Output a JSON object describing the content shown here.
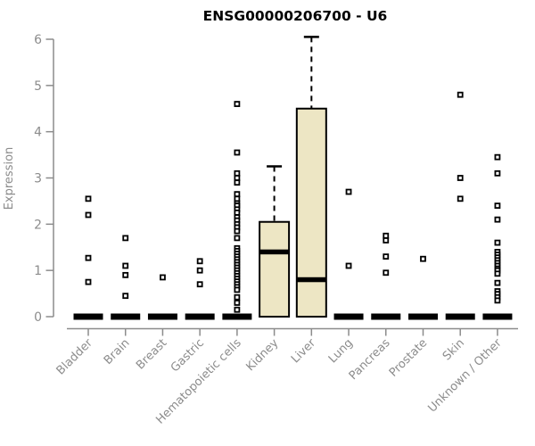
{
  "chart_data": {
    "type": "boxplot",
    "title": "ENSG00000206700 - U6",
    "ylabel": "Expression",
    "xlabel": "",
    "ylim": [
      0,
      6
    ],
    "yticks": [
      0,
      1,
      2,
      3,
      4,
      5,
      6
    ],
    "grid": false,
    "legend": "none",
    "colors": {
      "box_fill": "#EDE6C4",
      "box_stroke": "#000000",
      "median": "#000000",
      "whisker": "#000000",
      "outlier_stroke": "#000000",
      "outlier_fill": "#ffffff",
      "axis": "#8C8C8C",
      "tick_label": "#8C8C8C",
      "title": "#000000",
      "background": "#ffffff"
    },
    "categories": [
      "Bladder",
      "Brain",
      "Breast",
      "Gastric",
      "Hematopoietic cells",
      "Kidney",
      "Liver",
      "Lung",
      "Pancreas",
      "Prostate",
      "Skin",
      "Unknown / Other"
    ],
    "boxes": [
      {
        "category": "Bladder",
        "q1": 0,
        "median": 0,
        "q3": 0,
        "whisker_low": 0,
        "whisker_high": 0,
        "outliers": [
          2.55,
          2.2,
          1.27,
          0.75
        ]
      },
      {
        "category": "Brain",
        "q1": 0,
        "median": 0,
        "q3": 0,
        "whisker_low": 0,
        "whisker_high": 0,
        "outliers": [
          1.7,
          1.1,
          0.9,
          0.45
        ]
      },
      {
        "category": "Breast",
        "q1": 0,
        "median": 0,
        "q3": 0,
        "whisker_low": 0,
        "whisker_high": 0,
        "outliers": [
          0.85
        ]
      },
      {
        "category": "Gastric",
        "q1": 0,
        "median": 0,
        "q3": 0,
        "whisker_low": 0,
        "whisker_high": 0,
        "outliers": [
          1.2,
          1.0,
          0.7
        ]
      },
      {
        "category": "Hematopoietic cells",
        "q1": 0,
        "median": 0,
        "q3": 0,
        "whisker_low": 0,
        "whisker_high": 0,
        "outliers": [
          4.6,
          3.55,
          3.1,
          3.0,
          2.9,
          2.65,
          2.55,
          2.45,
          2.4,
          2.32,
          2.25,
          2.15,
          2.08,
          2.0,
          1.93,
          1.85,
          1.7,
          1.48,
          1.42,
          1.36,
          1.3,
          1.24,
          1.18,
          1.12,
          1.06,
          1.0,
          0.94,
          0.88,
          0.82,
          0.76,
          0.7,
          0.64,
          0.58,
          0.42,
          0.3,
          0.15
        ]
      },
      {
        "category": "Kidney",
        "q1": 0,
        "median": 1.4,
        "q3": 2.05,
        "whisker_low": 0,
        "whisker_high": 3.25,
        "outliers": []
      },
      {
        "category": "Liver",
        "q1": 0,
        "median": 0.8,
        "q3": 4.5,
        "whisker_low": 0,
        "whisker_high": 6.05,
        "outliers": []
      },
      {
        "category": "Lung",
        "q1": 0,
        "median": 0,
        "q3": 0,
        "whisker_low": 0,
        "whisker_high": 0,
        "outliers": [
          2.7,
          1.1
        ]
      },
      {
        "category": "Pancreas",
        "q1": 0,
        "median": 0,
        "q3": 0,
        "whisker_low": 0,
        "whisker_high": 0,
        "outliers": [
          1.75,
          1.65,
          1.3,
          0.95
        ]
      },
      {
        "category": "Prostate",
        "q1": 0,
        "median": 0,
        "q3": 0,
        "whisker_low": 0,
        "whisker_high": 0,
        "outliers": [
          1.25
        ]
      },
      {
        "category": "Skin",
        "q1": 0,
        "median": 0,
        "q3": 0,
        "whisker_low": 0,
        "whisker_high": 0,
        "outliers": [
          4.8,
          3.0,
          2.55
        ]
      },
      {
        "category": "Unknown / Other",
        "q1": 0,
        "median": 0,
        "q3": 0,
        "whisker_low": 0,
        "whisker_high": 0,
        "outliers": [
          3.45,
          3.1,
          2.4,
          2.1,
          1.6,
          1.4,
          1.34,
          1.28,
          1.22,
          1.16,
          1.1,
          1.04,
          1.0,
          0.93,
          0.73,
          0.55,
          0.49,
          0.42,
          0.35
        ]
      }
    ]
  }
}
